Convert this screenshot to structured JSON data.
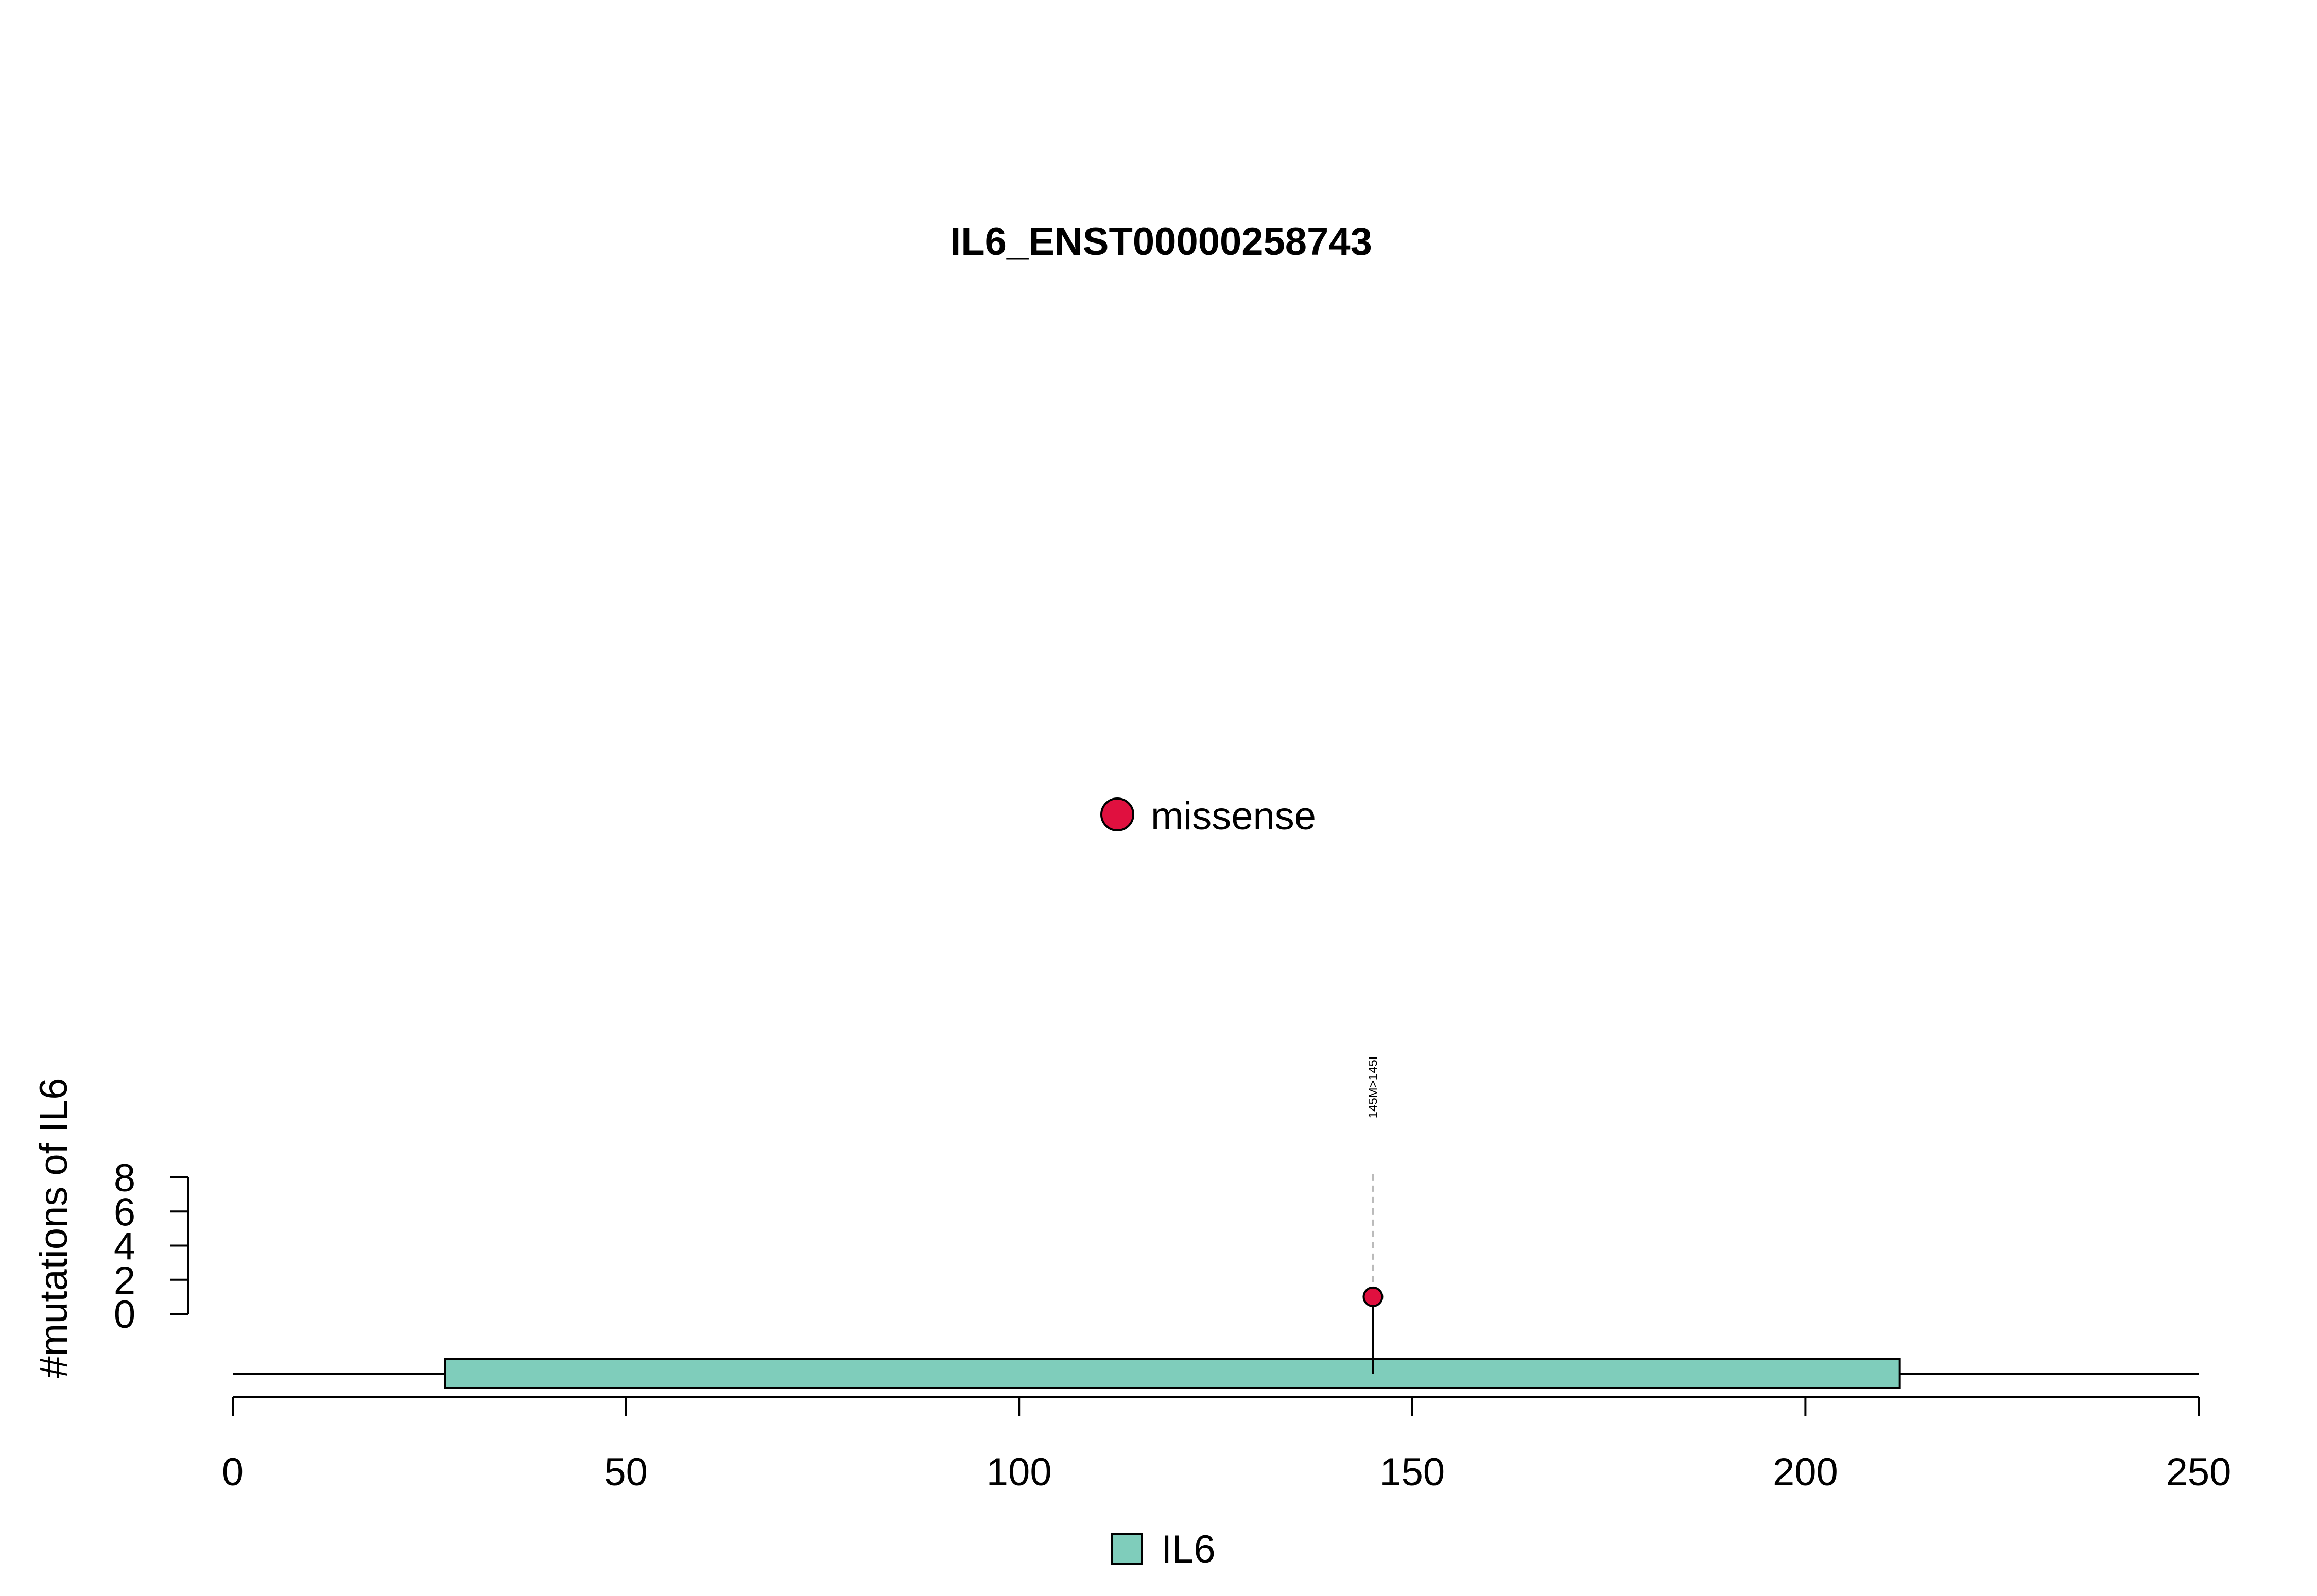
{
  "chart_data": {
    "type": "lollipop",
    "title": "IL6_ENST00000258743",
    "xlim": [
      0,
      250
    ],
    "x_ticks": [
      0,
      50,
      100,
      150,
      200,
      250
    ],
    "ylabel": "#mutations of IL6",
    "ylim": [
      0,
      8
    ],
    "y_ticks": [
      0,
      2,
      4,
      6,
      8
    ],
    "backbone": {
      "start": 0,
      "end": 250
    },
    "domains": [
      {
        "name": "IL6",
        "start": 27,
        "end": 212,
        "color": "#7FCDBB"
      }
    ],
    "mutations": [
      {
        "position": 145,
        "count": 1,
        "type": "missense",
        "label": "145M>145I",
        "color": "#E0103F"
      }
    ],
    "legend_mutation_types": [
      {
        "label": "missense",
        "color": "#E0103F"
      }
    ],
    "legend_domains": [
      {
        "label": "IL6",
        "color": "#7FCDBB"
      }
    ]
  }
}
